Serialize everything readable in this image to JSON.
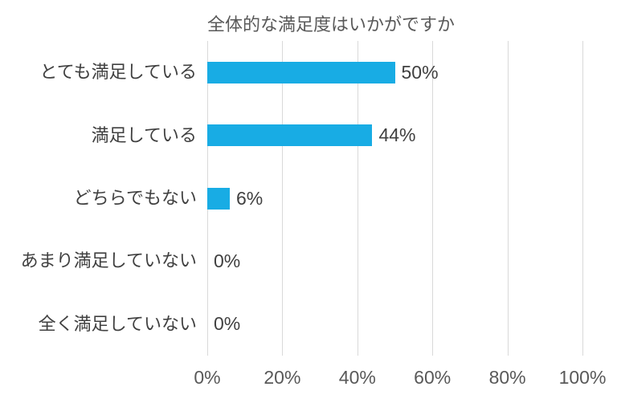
{
  "chart_data": {
    "type": "bar",
    "orientation": "horizontal",
    "title": "全体的な満足度はいかがですか",
    "categories": [
      "とても満足している",
      "満足している",
      "どちらでもない",
      "あまり満足していない",
      "全く満足していない"
    ],
    "values": [
      50,
      44,
      6,
      0,
      0
    ],
    "data_labels": [
      "50%",
      "44%",
      "6%",
      "0%",
      "0%"
    ],
    "xlabel": "",
    "ylabel": "",
    "xlim": [
      0,
      100
    ],
    "x_ticks": [
      {
        "value": 0,
        "label": "0%"
      },
      {
        "value": 20,
        "label": "20%"
      },
      {
        "value": 40,
        "label": "40%"
      },
      {
        "value": 60,
        "label": "60%"
      },
      {
        "value": 80,
        "label": "80%"
      },
      {
        "value": 100,
        "label": "100%"
      }
    ],
    "grid": "vertical-gridlines-on",
    "legend": "none",
    "colors": {
      "bar": "#18ACE4",
      "gridline": "#D9D9D9",
      "title": "#595959",
      "category_label": "#404040",
      "data_label": "#404040",
      "axis_label": "#595959",
      "background": "#FFFFFF"
    }
  }
}
